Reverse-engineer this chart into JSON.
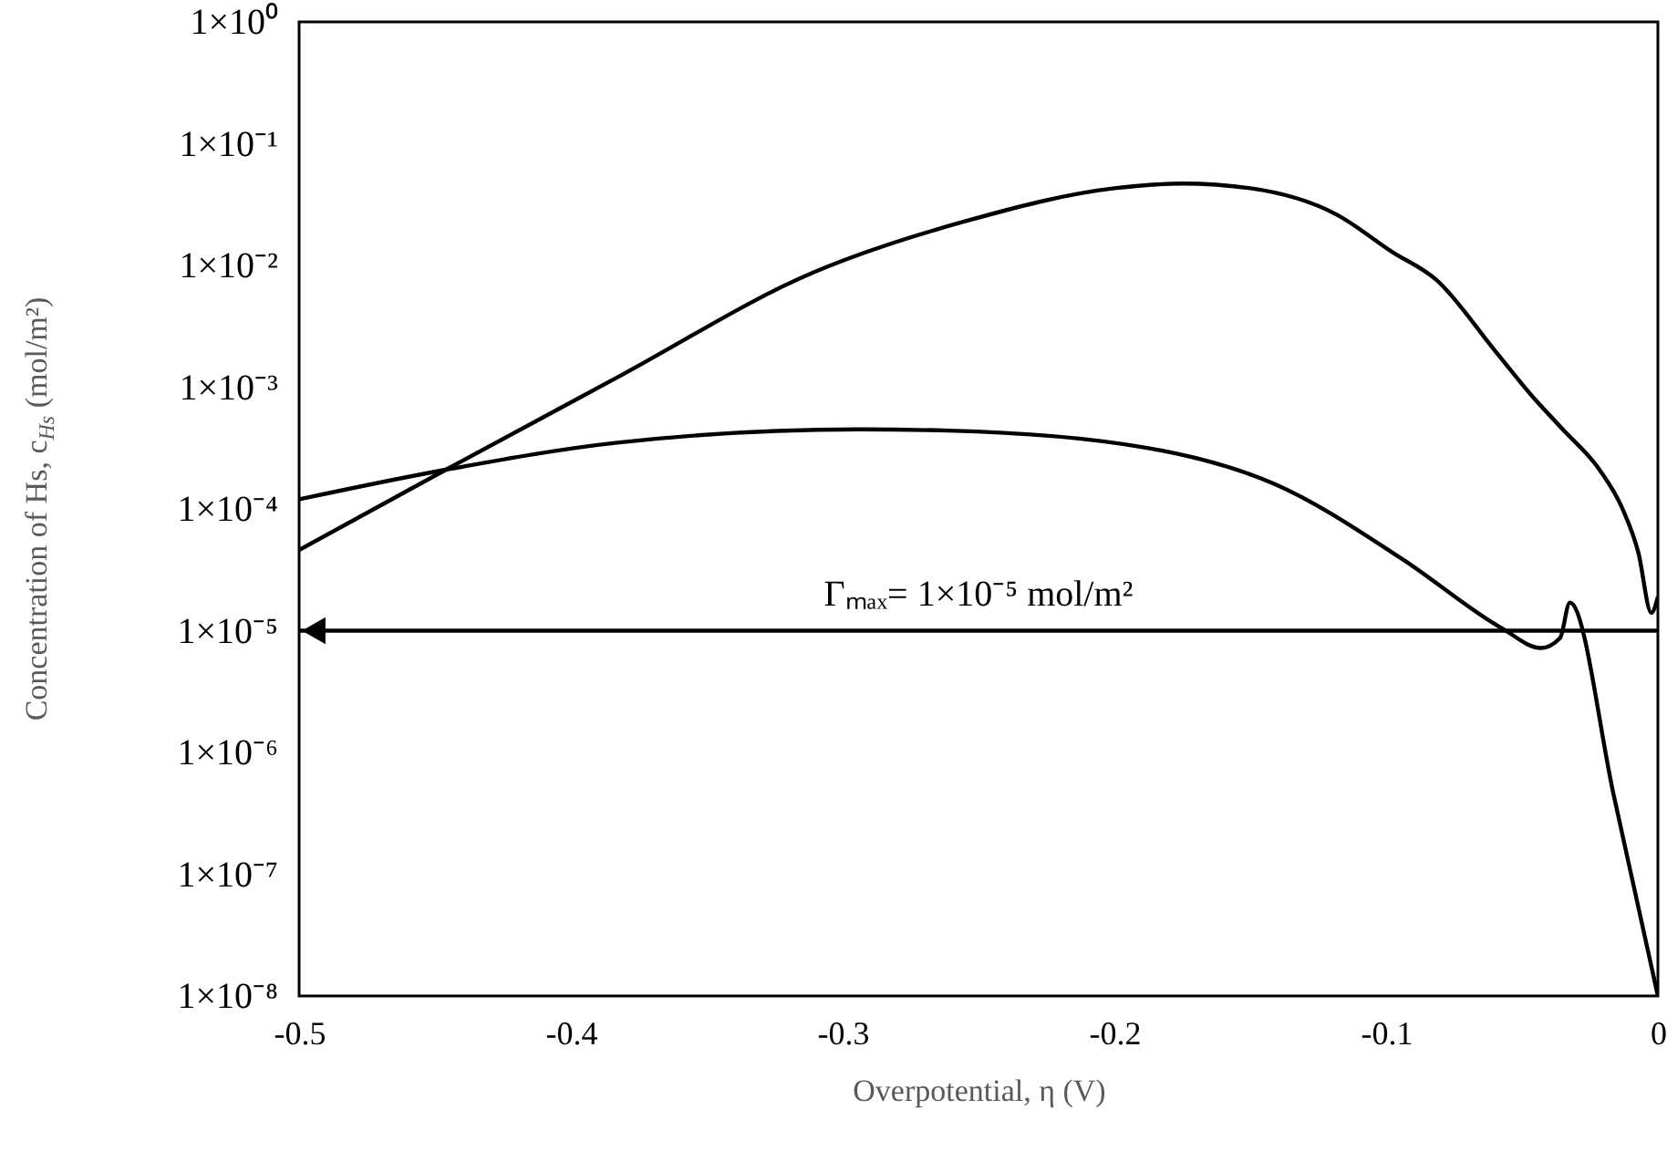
{
  "chart_data": {
    "type": "line",
    "xlabel": "Overpotential, η (V)",
    "ylabel": "Concentration of Hs, c$_{Hs}$ (mol/m²)",
    "log": true,
    "grid": false,
    "marker": "none",
    "line_style": "solid",
    "xlim": [
      -0.5,
      0
    ],
    "xticks": [
      -0.5,
      -0.4,
      -0.3,
      -0.2,
      -0.1,
      0
    ],
    "ylim": [
      1e-08,
      1
    ],
    "yticks": [
      {
        "value": 1e-08,
        "label": "1×10⁻⁸"
      },
      {
        "value": 1e-07,
        "label": "1×10⁻⁷"
      },
      {
        "value": 1e-06,
        "label": "1×10⁻⁶"
      },
      {
        "value": 1e-05,
        "label": "1×10⁻⁵"
      },
      {
        "value": 0.0001,
        "label": "1×10⁻⁴"
      },
      {
        "value": 0.001,
        "label": "1×10⁻³"
      },
      {
        "value": 0.01,
        "label": "1×10⁻²"
      },
      {
        "value": 0.1,
        "label": "1×10⁻¹"
      },
      {
        "value": 1,
        "label": "1×10⁰"
      }
    ],
    "series": [
      {
        "color": "#000000",
        "x": [
          -0.5,
          -0.446,
          -0.383,
          -0.311,
          -0.255,
          -0.2,
          -0.175,
          -0.15,
          -0.118,
          -0.098,
          -0.0815,
          -0.06,
          -0.046,
          -0.035,
          -0.0215,
          -0.013,
          -0.0072,
          -0.0024,
          0
        ],
        "values": [
          4.6e-05,
          0.00021,
          0.0012,
          0.0087,
          0.023,
          0.043,
          0.047,
          0.043,
          0.026,
          0.013,
          0.0076,
          0.002,
          0.00083,
          0.00045,
          0.00021,
          0.0001,
          4.4e-05,
          1.4e-05,
          1.9e-05
        ]
      },
      {
        "color": "#000000",
        "x": [
          -0.5,
          -0.446,
          -0.383,
          -0.294,
          -0.261,
          -0.189,
          -0.141,
          -0.0935,
          -0.0575,
          -0.043,
          -0.036,
          -0.0324,
          -0.016,
          0
        ],
        "values": [
          0.00012,
          0.00021,
          0.00035,
          0.00045,
          0.00044,
          0.00032,
          0.00016,
          3.8e-05,
          1.05e-05,
          7.2e-06,
          8.7e-06,
          1.7e-05,
          4.2e-07,
          1e-08
        ]
      }
    ],
    "ref_lines": [
      {
        "axis": "y",
        "value": 1e-05,
        "label": "Γₘₐₓ= 1×10⁻⁵ mol/m²",
        "color": "#000000",
        "line_style": "solid"
      }
    ]
  }
}
